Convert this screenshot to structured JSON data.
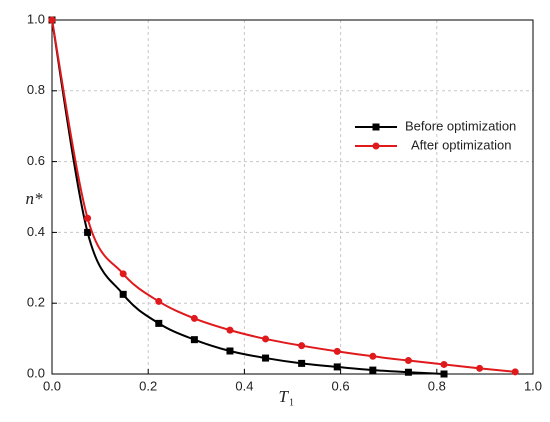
{
  "chart_data": {
    "type": "line",
    "x_label": "T",
    "x_label_subscript": "1",
    "y_label": "n*",
    "xlim": [
      0,
      1.0
    ],
    "ylim": [
      0,
      1.0
    ],
    "xticks": [
      {
        "value": 0,
        "label": "0.0"
      },
      0.2,
      0.4,
      0.6,
      0.8,
      {
        "value": 1.0,
        "label": "1.0"
      }
    ],
    "yticks": [
      {
        "value": 0,
        "label": "0.0"
      },
      0.2,
      0.4,
      0.6,
      0.8,
      {
        "value": 1.0,
        "label": "1.0"
      }
    ],
    "grid": true,
    "legend": "center right",
    "series": [
      {
        "name": "Before optimization",
        "color": "#000000",
        "marker": "square",
        "x": [
          0,
          0.074,
          0.148,
          0.222,
          0.296,
          0.37,
          0.444,
          0.519,
          0.593,
          0.667,
          0.741,
          0.815
        ],
        "values": [
          1.0,
          0.4,
          0.225,
          0.143,
          0.097,
          0.065,
          0.045,
          0.03,
          0.02,
          0.011,
          0.005,
          0.0
        ]
      },
      {
        "name": "After optimization",
        "color": "#e0191c",
        "marker": "circle",
        "x": [
          0,
          0.074,
          0.148,
          0.222,
          0.296,
          0.37,
          0.444,
          0.519,
          0.593,
          0.667,
          0.741,
          0.815,
          0.889,
          0.963
        ],
        "values": [
          1.0,
          0.44,
          0.283,
          0.205,
          0.157,
          0.124,
          0.099,
          0.08,
          0.064,
          0.05,
          0.038,
          0.027,
          0.016,
          0.006
        ]
      }
    ]
  }
}
